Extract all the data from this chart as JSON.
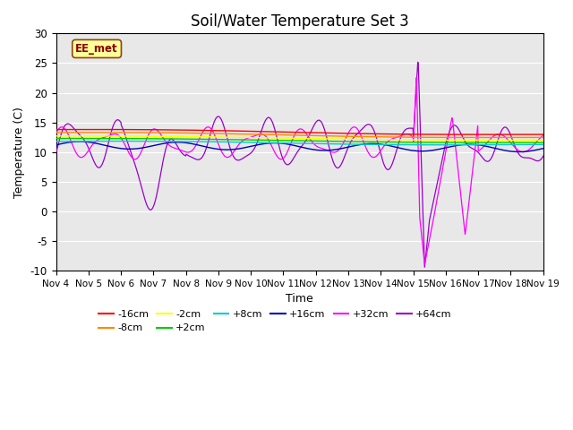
{
  "title": "Soil/Water Temperature Set 3",
  "xlabel": "Time",
  "ylabel": "Temperature (C)",
  "ylim": [
    -10,
    30
  ],
  "yticks": [
    -10,
    -5,
    0,
    5,
    10,
    15,
    20,
    25,
    30
  ],
  "xlim": [
    0,
    15
  ],
  "xtick_labels": [
    "Nov 4",
    "Nov 5",
    "Nov 6",
    "Nov 7",
    "Nov 8",
    "Nov 9",
    "Nov 10",
    "Nov 11",
    "Nov 12",
    "Nov 13",
    "Nov 14",
    "Nov 15",
    "Nov 16",
    "Nov 17",
    "Nov 18",
    "Nov 19"
  ],
  "watermark": "EE_met",
  "series_colors": {
    "-16cm": "#ff0000",
    "-8cm": "#ff8800",
    "-2cm": "#ffff00",
    "+2cm": "#00cc00",
    "+8cm": "#00cccc",
    "+16cm": "#0000bb",
    "+32cm": "#ff00ff",
    "+64cm": "#9900cc"
  },
  "background_color": "#e8e8e8",
  "title_fontsize": 12
}
